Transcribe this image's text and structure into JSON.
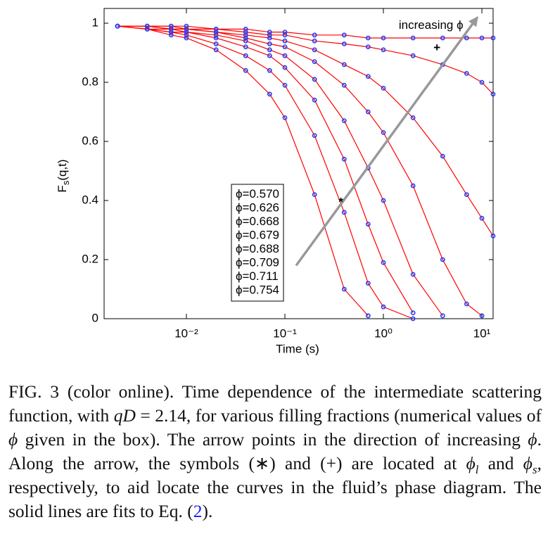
{
  "chart_data": {
    "type": "scatter",
    "xlabel": "Time (s)",
    "ylabel": "F_s(q,t)",
    "xscale": "log",
    "xlim": [
      0.00146,
      13
    ],
    "ylim": [
      0,
      1.05
    ],
    "xticks": [
      {
        "value": 0.01,
        "label": "10⁻²"
      },
      {
        "value": 0.1,
        "label": "10⁻¹"
      },
      {
        "value": 1,
        "label": "10⁰"
      },
      {
        "value": 10,
        "label": "10¹"
      }
    ],
    "yticks": [
      0,
      0.2,
      0.4,
      0.6,
      0.8,
      1
    ],
    "grid": false,
    "legend": "lower center",
    "fit_color": "#ff0000",
    "x": [
      0.002,
      0.004,
      0.007,
      0.01,
      0.02,
      0.04,
      0.07,
      0.1,
      0.2,
      0.4,
      0.7,
      1,
      2,
      4,
      7,
      10,
      13
    ],
    "series": [
      {
        "name": "ϕ=0.570",
        "color": "#1f3fff",
        "values": [
          0.99,
          0.98,
          0.96,
          0.95,
          0.91,
          0.84,
          0.76,
          0.68,
          0.42,
          0.1,
          0.01,
          null,
          null,
          null,
          null,
          null,
          null
        ]
      },
      {
        "name": "ϕ=0.626",
        "color": "#1f3fff",
        "values": [
          0.99,
          0.98,
          0.97,
          0.96,
          0.93,
          0.89,
          0.84,
          0.79,
          0.62,
          0.36,
          0.12,
          0.04,
          0.0,
          null,
          null,
          null,
          null
        ]
      },
      {
        "name": "ϕ=0.668",
        "color": "#1f3fff",
        "values": [
          0.99,
          0.98,
          0.97,
          0.97,
          0.95,
          0.92,
          0.89,
          0.85,
          0.74,
          0.54,
          0.32,
          0.19,
          0.02,
          null,
          null,
          null,
          null
        ]
      },
      {
        "name": "ϕ=0.679",
        "color": "#1f3fff",
        "values": [
          0.99,
          0.98,
          0.98,
          0.97,
          0.96,
          0.94,
          0.91,
          0.89,
          0.81,
          0.67,
          0.51,
          0.4,
          0.15,
          0.01,
          null,
          null,
          null
        ]
      },
      {
        "name": "ϕ=0.688",
        "color": "#1f3fff",
        "values": [
          0.99,
          0.99,
          0.98,
          0.98,
          0.97,
          0.95,
          0.93,
          0.92,
          0.87,
          0.79,
          0.7,
          0.63,
          0.45,
          0.2,
          0.05,
          0.01,
          null
        ]
      },
      {
        "name": "ϕ=0.709",
        "color": "#1f3fff",
        "values": [
          0.99,
          0.99,
          0.98,
          0.98,
          0.97,
          0.96,
          0.95,
          0.94,
          0.91,
          0.86,
          0.82,
          0.78,
          0.68,
          0.55,
          0.42,
          0.34,
          0.28
        ]
      },
      {
        "name": "ϕ=0.711",
        "color": "#1f3fff",
        "values": [
          0.99,
          0.99,
          0.99,
          0.98,
          0.98,
          0.97,
          0.96,
          0.96,
          0.94,
          0.93,
          0.92,
          0.91,
          0.89,
          0.86,
          0.83,
          0.8,
          0.76
        ]
      },
      {
        "name": "ϕ=0.754",
        "color": "#1f3fff",
        "values": [
          0.99,
          0.99,
          0.99,
          0.99,
          0.98,
          0.98,
          0.97,
          0.97,
          0.96,
          0.96,
          0.95,
          0.95,
          0.95,
          0.95,
          0.95,
          0.95,
          0.95
        ]
      }
    ],
    "arrow": {
      "text": "increasing ϕ",
      "from": [
        0.13,
        0.18
      ],
      "to": [
        9,
        1.02
      ],
      "color": "#999999"
    },
    "markers": [
      {
        "text": "*",
        "x": 0.37,
        "y": 0.41
      },
      {
        "text": "+",
        "x": 3.5,
        "y": 0.915
      }
    ]
  },
  "caption": [
    {
      "text": "FIG. 3 (color online).  Time dependence of the intermediate scattering function, with "
    },
    {
      "text": "qD",
      "italic": true
    },
    {
      "text": " = 2.14, for various filling fractions (numerical values of "
    },
    {
      "text": "ϕ",
      "italic": true
    },
    {
      "text": " given in the box). The arrow points in the direction of increasing "
    },
    {
      "text": "ϕ",
      "italic": true
    },
    {
      "text": ". Along the arrow, the symbols (∗) and (+) are located at "
    },
    {
      "text": "ϕ",
      "italic": true
    },
    {
      "text": "l",
      "italic": true,
      "sub": true
    },
    {
      "text": " and "
    },
    {
      "text": "ϕ",
      "italic": true
    },
    {
      "text": "s",
      "italic": true,
      "sub": true
    },
    {
      "text": ", respectively, to aid locate the curves in the fluid’s phase diagram. The solid lines are fits to Eq. ("
    },
    {
      "text": "2",
      "link": true
    },
    {
      "text": ")."
    }
  ]
}
